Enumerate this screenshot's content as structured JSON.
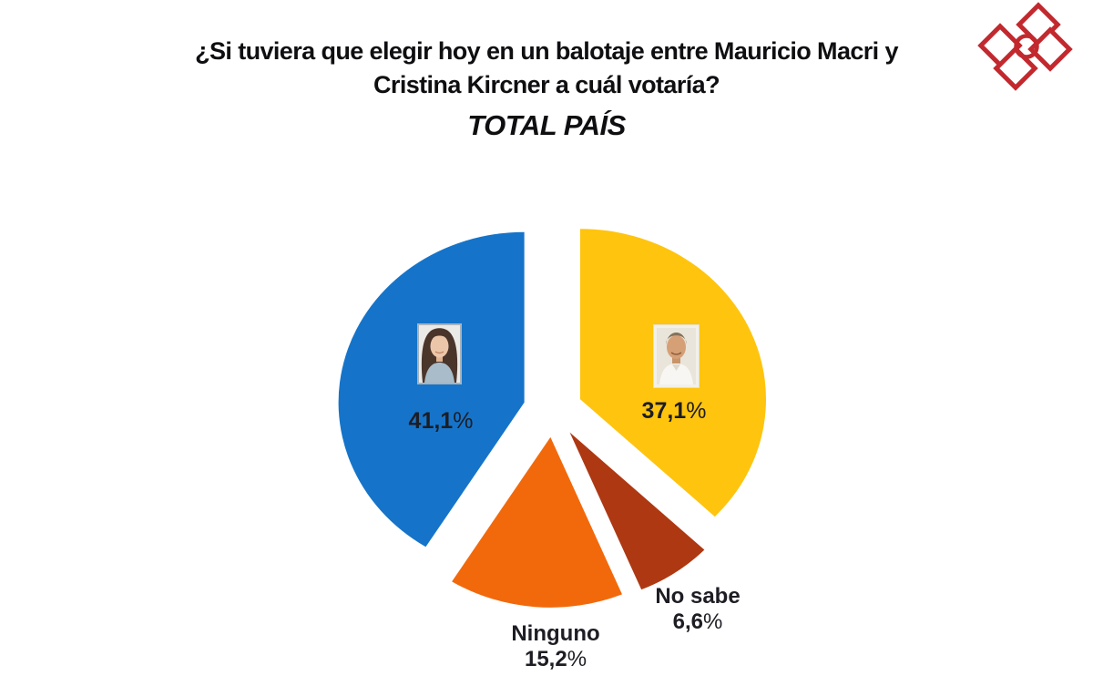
{
  "header": {
    "title_line1": "¿Si tuviera que elegir hoy en un balotaje entre Mauricio Macri y",
    "title_line2": "Cristina Kircner a cuál votaría?",
    "subtitle": "TOTAL PAÍS"
  },
  "logo": {
    "icon": "pinwheel-squares-circle-logo",
    "color": "#c2292e"
  },
  "chart_data": {
    "type": "pie",
    "title": "¿Si tuviera que elegir hoy en un balotaje entre Mauricio Macri y Cristina Kircner a cuál votaría? TOTAL PAÍS",
    "units": "percent",
    "start_angle_deg": 0,
    "direction": "clockwise",
    "exploded": true,
    "explode_fraction": 0.16,
    "legend_position": "none",
    "slices": [
      {
        "id": "macri",
        "label": "",
        "candidate": "Mauricio Macri",
        "value": 37.1,
        "display_value": "37,1%",
        "color": "#FFC40E",
        "photo": "mauricio-macri-portrait"
      },
      {
        "id": "no_sabe",
        "label": "No sabe",
        "candidate": "",
        "value": 6.6,
        "display_value": "6,6%",
        "color": "#AE3812",
        "photo": ""
      },
      {
        "id": "ninguno",
        "label": "Ninguno",
        "candidate": "",
        "value": 15.2,
        "display_value": "15,2%",
        "color": "#F2690C",
        "photo": ""
      },
      {
        "id": "cristina",
        "label": "",
        "candidate": "Cristina Kircner",
        "value": 41.1,
        "display_value": "41,1%",
        "color": "#1574C9",
        "photo": "cristina-kirchner-portrait"
      }
    ]
  }
}
